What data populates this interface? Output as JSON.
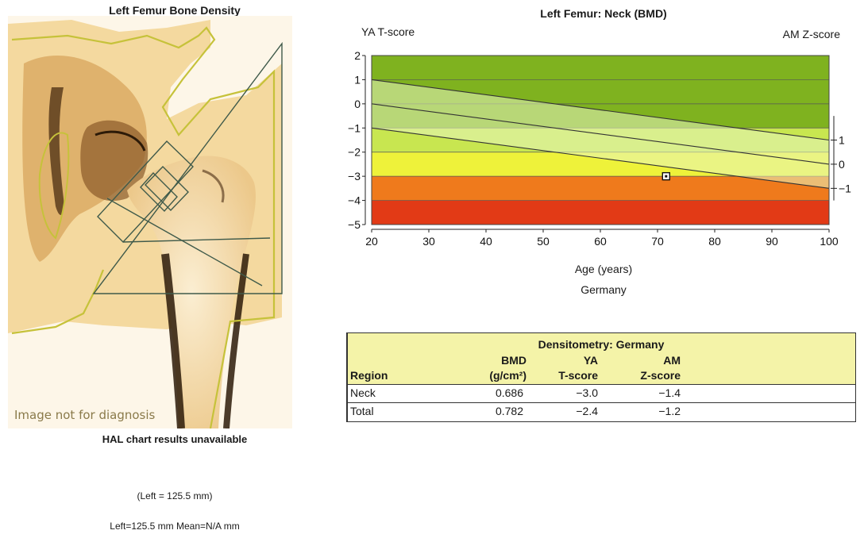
{
  "left_panel": {
    "title": "Left Femur Bone Density",
    "watermark": "Image not for diagnosis",
    "hal_text": "HAL chart results unavailable",
    "left_mm": "(Left = 125.5 mm)",
    "left_mean": "Left=125.5 mm  Mean=N/A mm"
  },
  "chart_data": {
    "type": "line",
    "title": "Left Femur: Neck (BMD)",
    "left_axis_label": "YA T-score",
    "right_axis_label": "AM Z-score",
    "xlabel": "Age (years)",
    "region": "Germany",
    "xlim": [
      20,
      100
    ],
    "ylim": [
      -5,
      2
    ],
    "x_ticks": [
      "20",
      "30",
      "40",
      "50",
      "60",
      "70",
      "80",
      "90",
      "100"
    ],
    "y_ticks": [
      "2",
      "1",
      "0",
      "−1",
      "−2",
      "−3",
      "−4",
      "−5"
    ],
    "right_ticks": [
      "1",
      "0",
      "−1"
    ],
    "bands": [
      {
        "from": -1,
        "to": 2,
        "color": "#7fb21f"
      },
      {
        "from": -2,
        "to": -1,
        "color": "#c8e650"
      },
      {
        "from": -3,
        "to": -2,
        "color": "#eef23a"
      },
      {
        "from": -4,
        "to": -3,
        "color": "#ef7a1c"
      },
      {
        "from": -5,
        "to": -4,
        "color": "#e23a16"
      }
    ],
    "series": [
      {
        "values": [
          [
            20,
            1.0
          ],
          [
            100,
            -1.5
          ]
        ]
      },
      {
        "values": [
          [
            20,
            0.0
          ],
          [
            100,
            -2.5
          ]
        ]
      },
      {
        "values": [
          [
            20,
            -1.0
          ],
          [
            100,
            -3.5
          ]
        ]
      }
    ],
    "point": {
      "x": 71.5,
      "y": -3.0
    }
  },
  "table": {
    "caption": "Densitometry: Germany",
    "headers": {
      "region": "Region",
      "bmd_top": "BMD",
      "bmd_unit": "(g/cm²)",
      "ya_top": "YA",
      "ya_bottom": "T-score",
      "am_top": "AM",
      "am_bottom": "Z-score"
    },
    "rows": [
      {
        "region": "Neck",
        "bmd": "0.686",
        "ya": "−3.0",
        "am": "−1.4"
      },
      {
        "region": "Total",
        "bmd": "0.782",
        "ya": "−2.4",
        "am": "−1.2"
      }
    ]
  },
  "colors": {
    "scan_bg": "#f3dcaa",
    "scan_dark": "#3a2410",
    "outline": "#c6c23a",
    "roi_lines": "#3f5a4a",
    "table_header_bg": "#f4f3a8"
  }
}
